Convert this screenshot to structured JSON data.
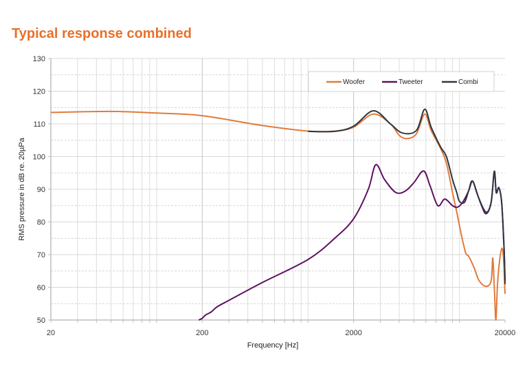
{
  "chart_data": {
    "type": "line",
    "title": "Typical response combined",
    "xlabel": "Frequency [Hz]",
    "ylabel": "RMS pressure in dB re. 20µPa",
    "xscale": "log",
    "xlim": [
      20,
      20000
    ],
    "ylim": [
      50,
      130
    ],
    "x_ticks": [
      20,
      200,
      2000,
      20000
    ],
    "x_tick_labels": [
      "20",
      "200",
      "2000",
      "20000"
    ],
    "y_ticks": [
      50,
      60,
      70,
      80,
      90,
      100,
      110,
      120,
      130
    ],
    "y_tick_labels": [
      "50",
      "60",
      "70",
      "80",
      "90",
      "100",
      "110",
      "120",
      "130"
    ],
    "grid": true,
    "legend_position": "top-right",
    "series": [
      {
        "name": "Woofer",
        "color": "#e07b39",
        "x": [
          20,
          50,
          100,
          200,
          500,
          1000,
          1500,
          2000,
          2700,
          3500,
          4000,
          4500,
          5200,
          5900,
          6500,
          7500,
          8200,
          9000,
          9700,
          10300,
          11000,
          11500,
          12500,
          13500,
          15000,
          16200,
          16600,
          17000,
          17400,
          17800,
          18400,
          19100,
          19600,
          20000
        ],
        "y": [
          113.5,
          113.8,
          113.3,
          112.5,
          109.5,
          107.8,
          107.8,
          109,
          113,
          110,
          106.5,
          105.5,
          107,
          113,
          108,
          102.5,
          98,
          89,
          82,
          76,
          70.5,
          69.5,
          66,
          62,
          60.3,
          62,
          69,
          60,
          50,
          60,
          68,
          72,
          68,
          58
        ]
      },
      {
        "name": "Tweeter",
        "color": "#5e1060",
        "x": [
          190,
          200,
          210,
          230,
          250,
          300,
          500,
          1000,
          1500,
          2000,
          2500,
          2800,
          3200,
          3800,
          4400,
          5000,
          5800,
          6400,
          7200,
          8000,
          9000,
          9700,
          10500,
          11500,
          12200,
          13000,
          14000,
          15000,
          16200,
          17000,
          17500,
          18200,
          19000,
          19700,
          20000
        ],
        "y": [
          50,
          50.5,
          51.5,
          52.5,
          54,
          56,
          61.5,
          68.5,
          75,
          81,
          90,
          97.5,
          93,
          89,
          89.5,
          92,
          95.6,
          91,
          85,
          87,
          85,
          84.5,
          86,
          89.5,
          92.5,
          89,
          85,
          82.5,
          86,
          95.5,
          89,
          90.5,
          86,
          72,
          62
        ]
      },
      {
        "name": "Combi",
        "color": "#2e3640",
        "x": [
          1000,
          1500,
          2000,
          2700,
          3500,
          4200,
          5200,
          5900,
          6500,
          7500,
          8200,
          9000,
          9600,
          10000,
          10800,
          11500,
          12200,
          13500,
          15000,
          16200,
          17000,
          17500,
          18200,
          19000,
          19700,
          20000
        ],
        "y": [
          107.7,
          107.7,
          109.3,
          114,
          110,
          107.2,
          108,
          114.5,
          109,
          103,
          100,
          93,
          89,
          86.3,
          86,
          89.5,
          92.5,
          87,
          83,
          86,
          95.5,
          89,
          90.5,
          86,
          72,
          61
        ]
      }
    ]
  }
}
